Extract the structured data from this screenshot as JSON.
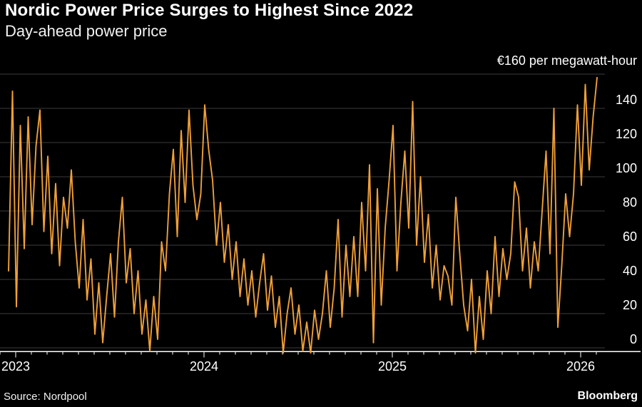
{
  "header": {
    "title": "Nordic Power Price Surges to Highest Since 2022",
    "subtitle": "Day-ahead power price"
  },
  "footer": {
    "source": "Source: Nordpool",
    "brand": "Bloomberg"
  },
  "chart_data": {
    "type": "line",
    "title": "Nordic Power Price Surges to Highest Since 2022",
    "subtitle": "Day-ahead power price",
    "unit_label": "€160 per megawatt-hour",
    "currency_unit": "EUR per megawatt-hour",
    "ylim": [
      0,
      160
    ],
    "y_ticks": [
      0,
      20,
      40,
      60,
      80,
      100,
      120,
      140
    ],
    "y_top_gridline": 160,
    "x_year_labels": [
      "2023",
      "2024",
      "2025",
      "2026"
    ],
    "x_years_numeric": [
      2023,
      2024,
      2025,
      2026
    ],
    "grid": true,
    "legend_position": "none",
    "line_color": "#F0A037",
    "grid_color": "#3c3c3c",
    "axis_color": "#ffffff",
    "background_color": "#000000",
    "series": [
      {
        "name": "Day-ahead power price",
        "color": "#F0A037",
        "x_start_year": 2022.9621,
        "x_step_years": 0.0208333,
        "values": [
          45,
          150,
          24,
          130,
          58,
          135,
          72,
          118,
          139,
          68,
          112,
          55,
          96,
          48,
          88,
          70,
          104,
          62,
          35,
          75,
          28,
          52,
          8,
          38,
          3,
          30,
          55,
          18,
          62,
          88,
          38,
          58,
          20,
          45,
          8,
          28,
          -2,
          30,
          5,
          62,
          45,
          90,
          116,
          65,
          127,
          85,
          139,
          95,
          75,
          90,
          142,
          116,
          98,
          60,
          85,
          50,
          72,
          40,
          62,
          30,
          52,
          25,
          45,
          18,
          38,
          55,
          22,
          42,
          12,
          30,
          -3,
          20,
          35,
          8,
          25,
          -2,
          15,
          -3,
          22,
          5,
          20,
          45,
          12,
          35,
          75,
          18,
          60,
          30,
          65,
          30,
          85,
          45,
          107,
          3,
          93,
          25,
          70,
          98,
          130,
          45,
          85,
          115,
          70,
          144,
          60,
          100,
          50,
          78,
          35,
          60,
          28,
          48,
          42,
          25,
          88,
          55,
          25,
          10,
          40,
          -3,
          30,
          5,
          45,
          20,
          65,
          30,
          58,
          40,
          55,
          97,
          88,
          45,
          70,
          35,
          62,
          45,
          80,
          115,
          55,
          140,
          12,
          48,
          90,
          65,
          90,
          142,
          95,
          154,
          104,
          135,
          158
        ]
      }
    ]
  }
}
